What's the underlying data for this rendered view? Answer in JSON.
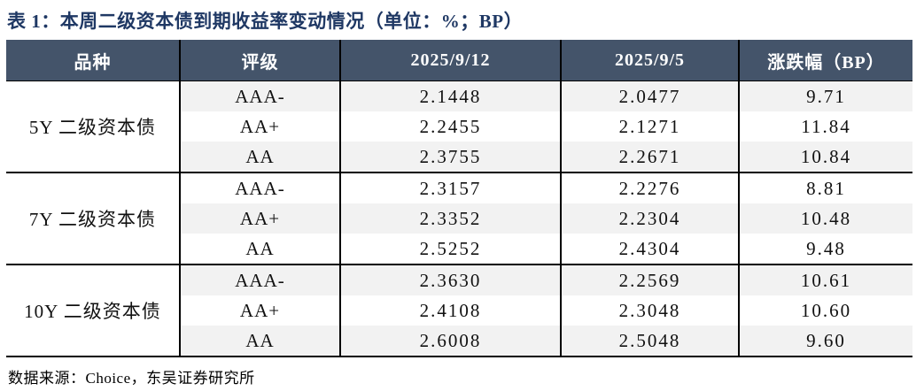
{
  "title": "表 1：本周二级资本债到期收益率变动情况（单位：%；BP）",
  "table": {
    "headers": [
      "品种",
      "评级",
      "2025/9/12",
      "2025/9/5",
      "涨跌幅（BP）"
    ],
    "groups": [
      {
        "name": "5Y 二级资本债",
        "rows": [
          [
            "AAA-",
            "2.1448",
            "2.0477",
            "9.71"
          ],
          [
            "AA+",
            "2.2455",
            "2.1271",
            "11.84"
          ],
          [
            "AA",
            "2.3755",
            "2.2671",
            "10.84"
          ]
        ]
      },
      {
        "name": "7Y 二级资本债",
        "rows": [
          [
            "AAA-",
            "2.3157",
            "2.2276",
            "8.81"
          ],
          [
            "AA+",
            "2.3352",
            "2.2304",
            "10.48"
          ],
          [
            "AA",
            "2.5252",
            "2.4304",
            "9.48"
          ]
        ]
      },
      {
        "name": "10Y 二级资本债",
        "rows": [
          [
            "AAA-",
            "2.3630",
            "2.2569",
            "10.61"
          ],
          [
            "AA+",
            "2.4108",
            "2.3048",
            "10.60"
          ],
          [
            "AA",
            "2.6008",
            "2.5048",
            "9.60"
          ]
        ]
      }
    ]
  },
  "footer": {
    "source": "数据来源：Choice，东吴证券研究所"
  },
  "colors": {
    "title_text": "#1F3864",
    "header_bg": "#44546A",
    "header_text": "#FFFFFF",
    "row_stripe": "#F2F2F2",
    "rule_line": "#000000",
    "body_text": "#111111"
  }
}
